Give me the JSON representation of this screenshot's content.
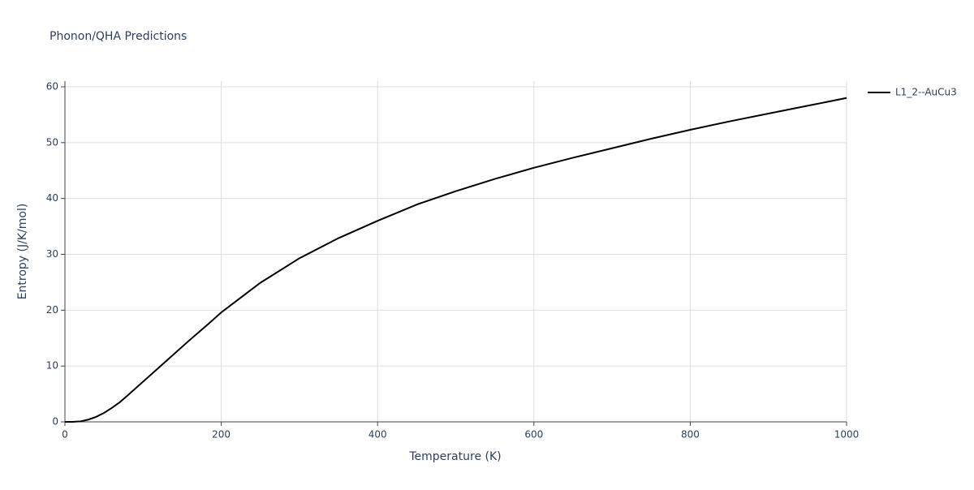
{
  "chart_data": {
    "type": "line",
    "title": "Phonon/QHA Predictions",
    "x_label": "Temperature (K)",
    "y_label": "Entropy (J/K/mol)",
    "x": [
      0,
      10,
      20,
      30,
      40,
      50,
      60,
      70,
      80,
      100,
      120,
      140,
      160,
      180,
      200,
      250,
      300,
      350,
      400,
      450,
      500,
      550,
      600,
      650,
      700,
      750,
      800,
      850,
      900,
      950,
      1000
    ],
    "series": [
      {
        "name": "L1_2--AuCu3",
        "color": "#000000",
        "values": [
          0,
          0,
          0.1,
          0.4,
          0.9,
          1.6,
          2.5,
          3.5,
          4.7,
          7.2,
          9.7,
          12.2,
          14.7,
          17.1,
          19.6,
          24.9,
          29.3,
          32.9,
          36.0,
          38.9,
          41.3,
          43.5,
          45.5,
          47.3,
          49.0,
          50.7,
          52.3,
          53.8,
          55.2,
          56.6,
          58.0
        ]
      }
    ],
    "xlim": [
      0,
      1000
    ],
    "xticks": [
      0,
      200,
      400,
      600,
      800,
      1000
    ],
    "ylim": [
      0,
      60
    ],
    "yticks": [
      0,
      10,
      20,
      30,
      40,
      50,
      60
    ],
    "grid": true,
    "legend": "right"
  }
}
